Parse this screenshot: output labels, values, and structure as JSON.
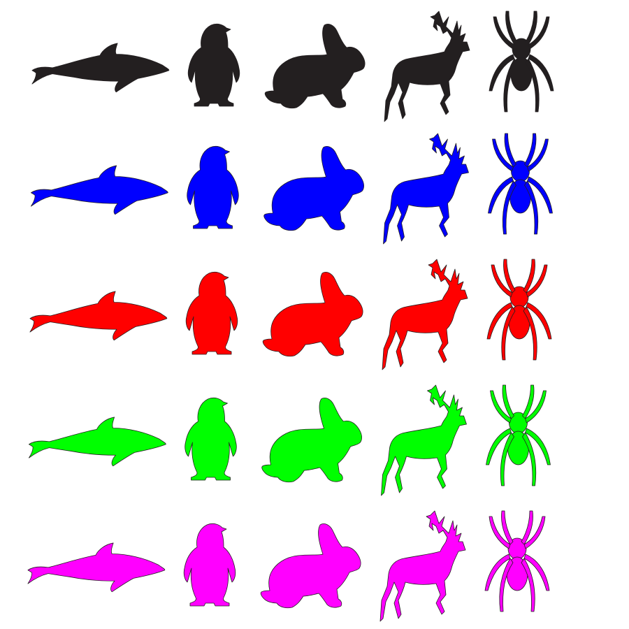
{
  "canvas": {
    "background": "#ffffff"
  },
  "rows": [
    {
      "color": "#231f20",
      "color_name": "black"
    },
    {
      "color": "#0000ff",
      "color_name": "blue"
    },
    {
      "color": "#ff0000",
      "color_name": "red"
    },
    {
      "color": "#00ff00",
      "color_name": "green"
    },
    {
      "color": "#ff00ff",
      "color_name": "magenta"
    }
  ],
  "columns": [
    {
      "icon": "dolphin-icon"
    },
    {
      "icon": "penguin-icon"
    },
    {
      "icon": "rabbit-icon"
    },
    {
      "icon": "deer-icon"
    },
    {
      "icon": "spider-icon"
    }
  ],
  "outline_color": "#231f20"
}
